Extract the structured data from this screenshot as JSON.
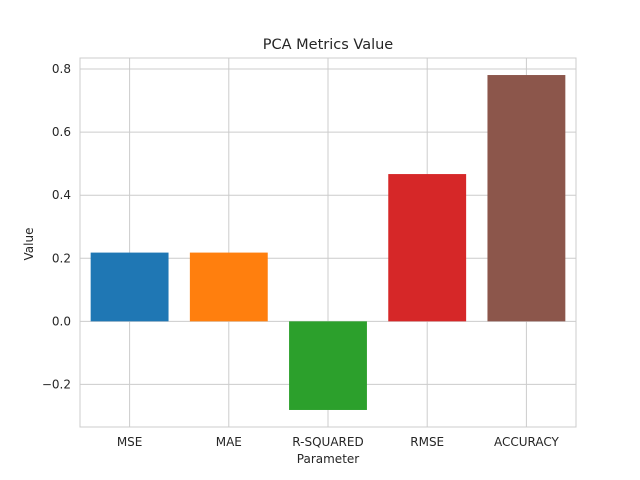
{
  "chart_data": {
    "type": "bar",
    "title": "PCA Metrics Value",
    "xlabel": "Parameter",
    "ylabel": "Value",
    "categories": [
      "MSE",
      "MAE",
      "R-SQUARED",
      "RMSE",
      "ACCURACY"
    ],
    "values": [
      0.218,
      0.218,
      -0.281,
      0.467,
      0.781
    ],
    "colors": [
      "#1f77b4",
      "#ff7f0e",
      "#2ca02c",
      "#d62728",
      "#8c564b"
    ],
    "ylim": [
      -0.335,
      0.835
    ],
    "yticks": [
      -0.2,
      0.0,
      0.2,
      0.4,
      0.6,
      0.8
    ],
    "ytick_labels": [
      "−0.2",
      "0.0",
      "0.2",
      "0.4",
      "0.6",
      "0.8"
    ],
    "grid": true,
    "legend": "none"
  }
}
